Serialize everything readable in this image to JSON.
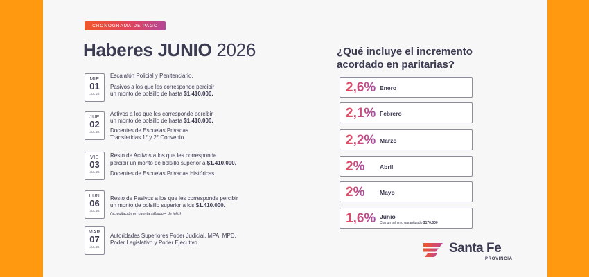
{
  "header": {
    "tag": "CRONOGRAMA DE PAGO",
    "title_bold": "Haberes JUNIO",
    "title_year": "2026"
  },
  "schedule": [
    {
      "dow": "MIE",
      "day": "01",
      "month": "JUL 26",
      "lines": [
        "Escalafón Policial y Penitenciario.",
        "Pasivos a los que les corresponde percibir",
        "un monto de bolsillo de hasta ",
        "$1.410.000."
      ]
    },
    {
      "dow": "JUE",
      "day": "02",
      "month": "JUL 26",
      "lines": [
        "Activos a los que les corresponde percibir",
        "un monto de bolsillo de hasta ",
        "$1.410.000.",
        "Docentes de Escuelas Privadas",
        "Transferidas 1° y 2° Convenio."
      ]
    },
    {
      "dow": "VIE",
      "day": "03",
      "month": "JUL 26",
      "lines": [
        "Resto de Activos a los que les corresponde",
        "percibir un monto de bolsillo superior a ",
        "$1.410.000.",
        "Docentes de Escuelas Privadas Históricas."
      ]
    },
    {
      "dow": "LUN",
      "day": "06",
      "month": "JUL 26",
      "lines": [
        "Resto de Pasivos a los que les corresponde percibir",
        "un monto de bolsillo superior a los ",
        "$1.410.000.",
        "(acreditación en cuenta sábado 4 de julio)"
      ]
    },
    {
      "dow": "MAR",
      "day": "07",
      "month": "JUL 26",
      "lines": [
        "Autoridades Superiores Poder Judicial, MPA, MPD,",
        "Poder Legislativo y Poder Ejecutivo."
      ]
    }
  ],
  "increases": {
    "question_line1": "¿Qué incluye el  incremento",
    "question_line2": "acordado en paritarias?",
    "items": [
      {
        "pct": "2,6%",
        "month": "Enero"
      },
      {
        "pct": "2,1%",
        "month": "Febrero"
      },
      {
        "pct": "2,2%",
        "month": "Marzo"
      },
      {
        "pct": "2%",
        "month": "Abril"
      },
      {
        "pct": "2%",
        "month": "Mayo"
      },
      {
        "pct": "1,6%",
        "month": "Junio",
        "note": "Con un mínimo garantizado ",
        "note_amount": "$170.000"
      }
    ]
  },
  "brand": {
    "name": "Santa Fe",
    "sub": "PROVINCIA"
  },
  "colors": {
    "background": "#FF9A10",
    "card": "#f7f7f8",
    "accent_start": "#f0562a",
    "accent_end": "#a74ea0",
    "text": "#3b3b52"
  }
}
